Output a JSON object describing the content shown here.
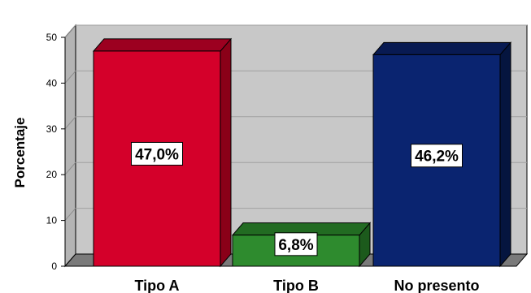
{
  "chart_data": {
    "type": "bar",
    "style": "3d",
    "categories": [
      "Tipo A",
      "Tipo B",
      "No presento"
    ],
    "values": [
      47.0,
      6.8,
      46.2
    ],
    "data_labels": [
      "47,0%",
      "6,8%",
      "46,2%"
    ],
    "title": "",
    "xlabel": "",
    "ylabel": "Porcentaje",
    "ylim": [
      0,
      50
    ],
    "yticks": [
      0,
      10,
      20,
      30,
      40,
      50
    ],
    "grid": true,
    "legend": "none",
    "colors": [
      "#d4002a",
      "#2e8b2e",
      "#0a2470"
    ],
    "side_colors": [
      "#8a0018",
      "#1c5a1c",
      "#05153f"
    ],
    "top_colors": [
      "#9c0020",
      "#226b22",
      "#081a52"
    ],
    "background": "#c8c8c8",
    "floor_color": "#7a7a7a"
  }
}
